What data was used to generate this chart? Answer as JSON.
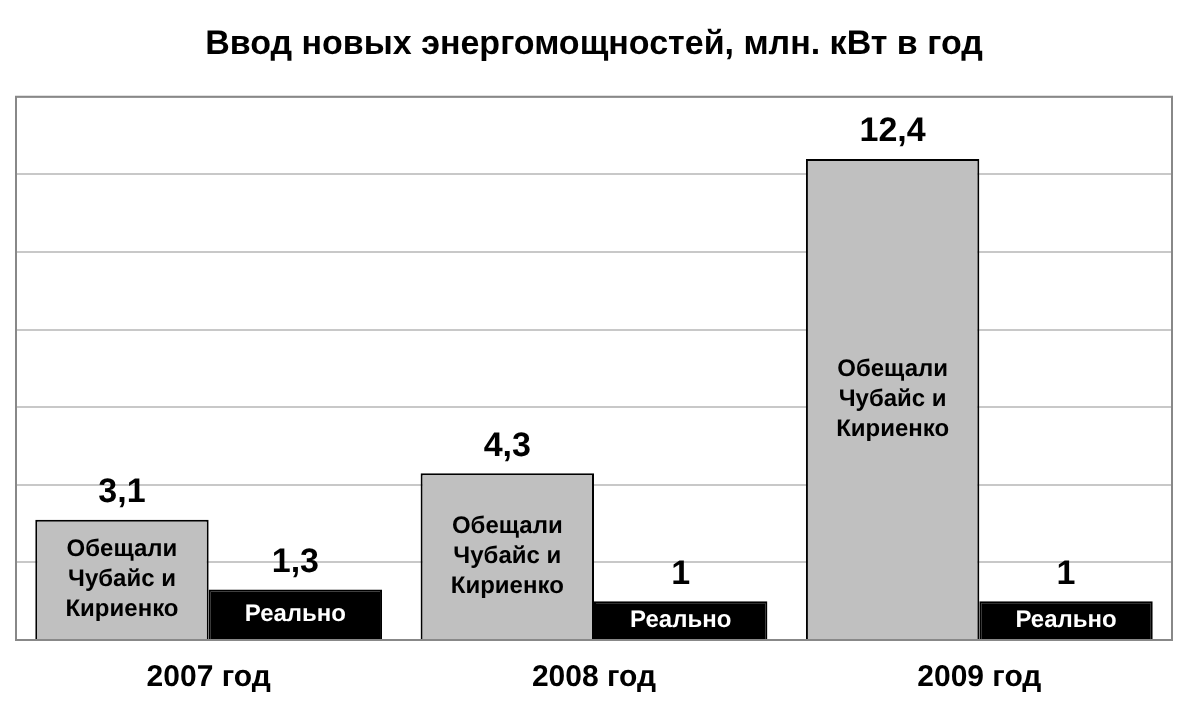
{
  "chart_data": {
    "type": "bar",
    "title": "Ввод новых энергомощностей, млн. кВт в год",
    "categories": [
      "2007 год",
      "2008 год",
      "2009 год"
    ],
    "series": [
      {
        "name": "Обещали Чубайс и Кириенко",
        "color": "#c0c0c0",
        "values": [
          3.1,
          4.3,
          12.4
        ],
        "value_labels": [
          "3,1",
          "4,3",
          "12,4"
        ]
      },
      {
        "name": "Реально",
        "color": "#000000",
        "values": [
          1.3,
          1,
          1
        ],
        "value_labels": [
          "1,3",
          "1",
          "1"
        ]
      }
    ],
    "grid": "y",
    "legend": false,
    "tick_labels": "x"
  }
}
